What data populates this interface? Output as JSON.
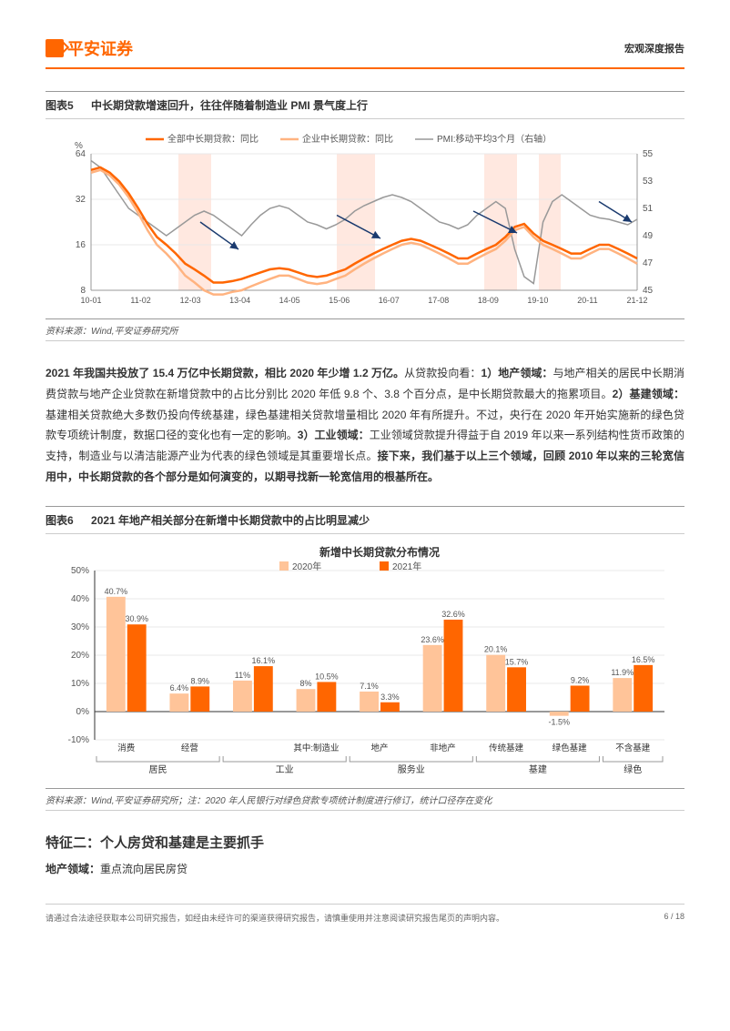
{
  "header": {
    "logo_text": "平安证券",
    "right": "宏观深度报告"
  },
  "fig5": {
    "label": "图表5",
    "title": "中长期贷款增速回升，往往伴随着制造业 PMI 景气度上行",
    "source": "资料来源：Wind,平安证券研究所",
    "y_left_unit": "%",
    "y_left_ticks": [
      8,
      16,
      32,
      64
    ],
    "y_right_ticks": [
      45,
      47,
      49,
      51,
      53,
      55
    ],
    "x_labels": [
      "10-01",
      "11-02",
      "12-03",
      "13-04",
      "14-05",
      "15-06",
      "16-07",
      "17-08",
      "18-09",
      "19-10",
      "20-11",
      "21-12"
    ],
    "legend": [
      {
        "label": "全部中长期贷款：同比",
        "color": "#ff6600",
        "width": 2.5
      },
      {
        "label": "企业中长期贷款：同比",
        "color": "#ffb380",
        "width": 2.5
      },
      {
        "label": "PMI:移动平均3个月（右轴）",
        "color": "#999999",
        "width": 1.5
      }
    ],
    "series_all": [
      50,
      52,
      48,
      42,
      35,
      28,
      22,
      18,
      16,
      14,
      12,
      11,
      10,
      9,
      9,
      9.2,
      9.5,
      10,
      10.5,
      11,
      11.2,
      11,
      10.5,
      10,
      9.8,
      10,
      10.5,
      11,
      12,
      13,
      14,
      15,
      16,
      17,
      17.5,
      17,
      16,
      15,
      14,
      13,
      13,
      14,
      15,
      16,
      18,
      21,
      22,
      19,
      17,
      16,
      15,
      14,
      14,
      15,
      16,
      16,
      15,
      14,
      13
    ],
    "series_corp": [
      48,
      50,
      46,
      40,
      33,
      26,
      20,
      16,
      14,
      12,
      10,
      9,
      8,
      7.5,
      7.5,
      7.8,
      8,
      8.5,
      9,
      9.5,
      10,
      10,
      9.5,
      9,
      8.8,
      9,
      9.5,
      10,
      11,
      12,
      13,
      14,
      15,
      16,
      16.5,
      16,
      15,
      14,
      13,
      12,
      12,
      13,
      14,
      15,
      17,
      20,
      21,
      18,
      16,
      15,
      14,
      13,
      13,
      14,
      15,
      15,
      14,
      13,
      12
    ],
    "series_pmi": [
      54.5,
      54,
      53,
      52,
      51,
      50.5,
      50,
      49.5,
      49,
      49.5,
      50,
      50.5,
      50.8,
      50.5,
      50,
      49.5,
      49,
      49.8,
      50.5,
      51,
      51.2,
      51,
      50.5,
      50,
      49.8,
      49.5,
      49.8,
      50.2,
      50.8,
      51.2,
      51.5,
      51.8,
      52,
      51.8,
      51.5,
      51,
      50.5,
      50,
      49.8,
      49.5,
      49.8,
      50.5,
      51,
      51.5,
      51,
      48,
      46,
      45.5,
      50,
      51.5,
      52,
      51.5,
      51,
      50.5,
      50.3,
      50.2,
      50,
      49.8,
      50.2
    ],
    "pink_bands": [
      [
        0.16,
        0.22
      ],
      [
        0.45,
        0.52
      ],
      [
        0.72,
        0.78
      ],
      [
        0.82,
        0.86
      ]
    ],
    "arrows": [
      [
        0.2,
        0.5,
        0.27,
        0.7
      ],
      [
        0.45,
        0.45,
        0.53,
        0.62
      ],
      [
        0.7,
        0.42,
        0.78,
        0.58
      ],
      [
        0.93,
        0.35,
        0.99,
        0.5
      ]
    ],
    "colors": {
      "grid": "#e8e8e8",
      "axis": "#999",
      "band": "#ffe8e0",
      "arrow": "#1a3a6e"
    }
  },
  "para1": {
    "b1": "2021 年我国共投放了 15.4 万亿中长期贷款，相比 2020 年少增 1.2 万亿。",
    "t1": "从贷款投向看：",
    "b2": "1）地产领域：",
    "t2": "与地产相关的居民中长期消费贷款与地产企业贷款在新增贷款中的占比分别比 2020 年低 9.8 个、3.8 个百分点，是中长期贷款最大的拖累项目。",
    "b3": "2）基建领域：",
    "t3": "基建相关贷款绝大多数仍投向传统基建，绿色基建相关贷款增量相比 2020 年有所提升。不过，央行在 2020 年开始实施新的绿色贷款专项统计制度，数据口径的变化也有一定的影响。",
    "b4": "3）工业领域：",
    "t4": "工业领域贷款提升得益于自 2019 年以来一系列结构性货币政策的支持，制造业与以清洁能源产业为代表的绿色领域是其重要增长点。",
    "b5": "接下来，我们基于以上三个领域，回顾 2010 年以来的三轮宽信用中，中长期贷款的各个部分是如何演变的，以期寻找新一轮宽信用的根基所在。"
  },
  "fig6": {
    "label": "图表6",
    "title": "2021 年地产相关部分在新增中长期贷款中的占比明显减少",
    "chart_title": "新增中长期贷款分布情况",
    "source": "资料来源：Wind,平安证券研究所；注：2020 年人民银行对绿色贷款专项统计制度进行修订，统计口径存在变化",
    "legend": [
      {
        "label": "2020年",
        "color": "#ffc499"
      },
      {
        "label": "2021年",
        "color": "#ff6600"
      }
    ],
    "y_ticks": [
      -10,
      0,
      10,
      20,
      30,
      40,
      50
    ],
    "y_unit": "%",
    "bars": [
      {
        "sub": "消费",
        "v2020": 40.7,
        "v2021": 30.9,
        "group": 0
      },
      {
        "sub": "经营",
        "v2020": 6.4,
        "v2021": 8.9,
        "group": 0
      },
      {
        "sub": "",
        "v2020": 11.0,
        "v2021": 16.1,
        "group": 1
      },
      {
        "sub": "其中:制造业",
        "v2020": 8.0,
        "v2021": 10.5,
        "group": 1
      },
      {
        "sub": "地产",
        "v2020": 7.1,
        "v2021": 3.3,
        "group": 2
      },
      {
        "sub": "非地产",
        "v2020": 23.6,
        "v2021": 32.6,
        "group": 2
      },
      {
        "sub": "传统基建",
        "v2020": 20.1,
        "v2021": 15.7,
        "group": 3
      },
      {
        "sub": "绿色基建",
        "v2020": -1.5,
        "v2021": 9.2,
        "group": 3
      },
      {
        "sub": "不含基建",
        "v2020": 11.9,
        "v2021": 16.5,
        "group": 4
      }
    ],
    "groups": [
      "居民",
      "工业",
      "服务业",
      "基建",
      "绿色"
    ],
    "colors": {
      "grid": "#e8e8e8",
      "axis": "#333",
      "group_border": "#999"
    }
  },
  "section2": {
    "heading": "特征二：个人房贷和基建是主要抓手",
    "sub_label": "地产领域：",
    "sub_value": "重点流向居民房贷"
  },
  "footer": {
    "text": "请通过合法途径获取本公司研究报告，如经由未经许可的渠道获得研究报告，请慎重使用并注意阅读研究报告尾页的声明内容。",
    "page": "6 / 18"
  }
}
